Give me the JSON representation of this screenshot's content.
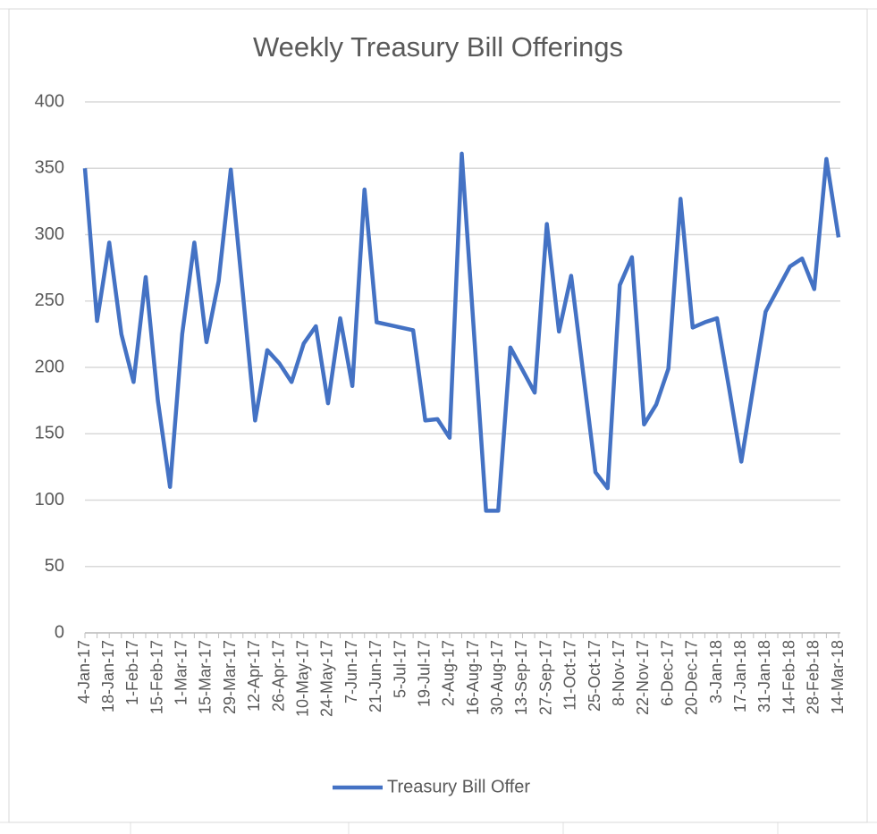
{
  "chart_data": {
    "type": "line",
    "title": "Weekly Treasury Bill Offerings",
    "categories": [
      "4-Jan-17",
      null,
      "18-Jan-17",
      null,
      "1-Feb-17",
      null,
      "15-Feb-17",
      null,
      "1-Mar-17",
      null,
      "15-Mar-17",
      null,
      "29-Mar-17",
      null,
      "12-Apr-17",
      null,
      "26-Apr-17",
      null,
      "10-May-17",
      null,
      "24-May-17",
      null,
      "7-Jun-17",
      null,
      "21-Jun-17",
      null,
      "5-Jul-17",
      null,
      "19-Jul-17",
      null,
      "2-Aug-17",
      null,
      "16-Aug-17",
      null,
      "30-Aug-17",
      null,
      "13-Sep-17",
      null,
      "27-Sep-17",
      null,
      "11-Oct-17",
      null,
      "25-Oct-17",
      null,
      "8-Nov-17",
      null,
      "22-Nov-17",
      null,
      "6-Dec-17",
      null,
      "20-Dec-17",
      null,
      "3-Jan-18",
      null,
      "17-Jan-18",
      null,
      "31-Jan-18",
      null,
      "14-Feb-18",
      null,
      "28-Feb-18",
      null,
      "14-Mar-18"
    ],
    "series": [
      {
        "name": "Treasury Bill Offer",
        "color": "#4472c4",
        "values": [
          350,
          235,
          294,
          225,
          189,
          268,
          175,
          110,
          225,
          294,
          219,
          265,
          349,
          255,
          160,
          213,
          203,
          189,
          218,
          231,
          173,
          237,
          186,
          334,
          234,
          232,
          230,
          228,
          160,
          161,
          147,
          361,
          227,
          92,
          92,
          215,
          198,
          181,
          308,
          227,
          269,
          195,
          121,
          109,
          262,
          283,
          157,
          172,
          199,
          327,
          230,
          234,
          237,
          184,
          129,
          186,
          242,
          259,
          276,
          282,
          259,
          357,
          298
        ]
      }
    ],
    "ylim": [
      0,
      400
    ],
    "yticks": [
      0,
      50,
      100,
      150,
      200,
      250,
      300,
      350,
      400
    ],
    "grid": true,
    "legend": "bottom"
  }
}
